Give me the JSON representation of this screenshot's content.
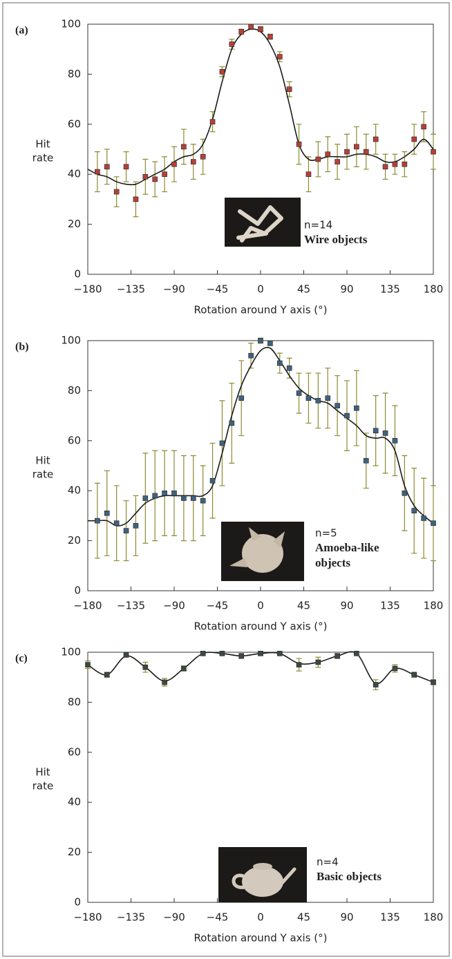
{
  "chart_data": [
    {
      "type": "scatter",
      "panel_label": "(a)",
      "y_label": [
        "Hit",
        "rate"
      ],
      "x_label": "Rotation around Y axis (°)",
      "xlim": [
        -180,
        180
      ],
      "ylim": [
        0,
        100
      ],
      "xticks": [
        {
          "value": -180,
          "label": "−180"
        },
        {
          "value": -135,
          "label": "−135"
        },
        {
          "value": -90,
          "label": "−90"
        },
        {
          "value": -45,
          "label": "−45"
        },
        0,
        45,
        90,
        135,
        180
      ],
      "yticks": [
        0,
        20,
        40,
        60,
        80,
        100
      ],
      "x": [
        -170,
        -160,
        -150,
        -140,
        -130,
        -120,
        -110,
        -100,
        -90,
        -80,
        -70,
        -60,
        -50,
        -40,
        -30,
        -20,
        -10,
        0,
        10,
        20,
        30,
        40,
        50,
        60,
        70,
        80,
        90,
        100,
        110,
        120,
        130,
        140,
        150,
        160,
        170,
        180
      ],
      "values": [
        41,
        43,
        33,
        43,
        30,
        39,
        38,
        40,
        44,
        51,
        45,
        47,
        61,
        81,
        92,
        97,
        99,
        98,
        95,
        87,
        74,
        52,
        40,
        46,
        48,
        45,
        49,
        51,
        49,
        54,
        43,
        44,
        44,
        54,
        59,
        49
      ],
      "errors": [
        8,
        7,
        6,
        6,
        7,
        7,
        7,
        7,
        7,
        7,
        7,
        7,
        4,
        2,
        2,
        1,
        1,
        1,
        1,
        2,
        3,
        8,
        7,
        7,
        7,
        7,
        7,
        8,
        7,
        6,
        5,
        4,
        5,
        6,
        6,
        7
      ],
      "color": "#b5403a",
      "error_color": "#8c8a2e",
      "fit": {
        "x": [
          -180,
          -170,
          -160,
          -150,
          -140,
          -130,
          -120,
          -110,
          -100,
          -90,
          -80,
          -70,
          -60,
          -50,
          -40,
          -30,
          -20,
          -10,
          0,
          10,
          20,
          30,
          40,
          50,
          60,
          70,
          80,
          90,
          100,
          110,
          120,
          130,
          140,
          150,
          160,
          170,
          180
        ],
        "values": [
          42,
          40,
          39,
          37,
          36,
          36,
          38,
          40,
          42,
          45,
          47,
          48,
          52,
          62,
          77,
          90,
          96,
          98,
          97,
          92,
          83,
          68,
          52,
          46,
          46,
          47,
          47,
          47,
          48,
          48,
          47,
          45,
          45,
          47,
          50,
          54,
          50
        ],
        "color": "#1a1a1a"
      },
      "annotations": [
        "n=14",
        "Wire objects"
      ]
    },
    {
      "type": "scatter",
      "panel_label": "(b)",
      "y_label": [
        "Hit",
        "rate"
      ],
      "x_label": "Rotation around Y axis (°)",
      "xlim": [
        -180,
        180
      ],
      "ylim": [
        0,
        100
      ],
      "xticks": [
        {
          "value": -180,
          "label": "−180"
        },
        {
          "value": -135,
          "label": "−135"
        },
        {
          "value": -90,
          "label": "−90"
        },
        {
          "value": -45,
          "label": "−45"
        },
        0,
        45,
        90,
        135,
        180
      ],
      "yticks": [
        0,
        20,
        40,
        60,
        80,
        100
      ],
      "x": [
        -170,
        -160,
        -150,
        -140,
        -130,
        -120,
        -110,
        -100,
        -90,
        -80,
        -70,
        -60,
        -50,
        -40,
        -30,
        -20,
        -10,
        0,
        10,
        20,
        30,
        40,
        50,
        60,
        70,
        80,
        90,
        100,
        110,
        120,
        130,
        140,
        150,
        160,
        170,
        180
      ],
      "values": [
        28,
        31,
        27,
        24,
        26,
        37,
        38,
        39,
        39,
        37,
        37,
        36,
        44,
        59,
        67,
        77,
        94,
        100,
        99,
        91,
        89,
        79,
        77,
        76,
        77,
        74,
        70,
        73,
        52,
        64,
        63,
        60,
        39,
        32,
        29,
        27
      ],
      "errors": [
        15,
        17,
        15,
        12,
        12,
        18,
        18,
        17,
        17,
        17,
        17,
        14,
        15,
        17,
        16,
        15,
        5,
        1,
        1,
        4,
        4,
        8,
        10,
        11,
        12,
        12,
        14,
        15,
        11,
        14,
        16,
        14,
        15,
        17,
        16,
        15
      ],
      "color": "#3f6280",
      "error_color": "#8c8a2e",
      "fit": {
        "x": [
          -180,
          -170,
          -160,
          -150,
          -140,
          -130,
          -120,
          -110,
          -100,
          -90,
          -80,
          -70,
          -60,
          -50,
          -40,
          -30,
          -20,
          -10,
          0,
          10,
          20,
          30,
          40,
          50,
          60,
          70,
          80,
          90,
          100,
          110,
          120,
          130,
          140,
          150,
          160,
          170,
          180
        ],
        "values": [
          28,
          28,
          28,
          26,
          27,
          31,
          35,
          37,
          38,
          38,
          38,
          38,
          38,
          42,
          55,
          70,
          82,
          90,
          96,
          97,
          92,
          86,
          81,
          78,
          76,
          75,
          72,
          69,
          66,
          62,
          61,
          61,
          56,
          42,
          34,
          30,
          27
        ],
        "color": "#1a1a1a"
      },
      "annotations": [
        "n=5",
        "Amoeba-like",
        "objects"
      ]
    },
    {
      "type": "scatter",
      "panel_label": "(c)",
      "y_label": [
        "Hit",
        "rate"
      ],
      "x_label": "Rotation around Y axis (°)",
      "xlim": [
        -180,
        180
      ],
      "ylim": [
        0,
        100
      ],
      "xticks": [
        {
          "value": -180,
          "label": "−180"
        },
        {
          "value": -135,
          "label": "−135"
        },
        {
          "value": -90,
          "label": "−90"
        },
        {
          "value": -45,
          "label": "−45"
        },
        0,
        45,
        90,
        135,
        180
      ],
      "yticks": [
        0,
        20,
        40,
        60,
        80,
        100
      ],
      "x": [
        -180,
        -160,
        -140,
        -120,
        -100,
        -80,
        -60,
        -40,
        -20,
        0,
        20,
        40,
        60,
        80,
        100,
        120,
        140,
        160,
        180
      ],
      "values": [
        95,
        91,
        99,
        94,
        88,
        93.5,
        99.5,
        99.5,
        98.5,
        99.5,
        99.5,
        95,
        96,
        98.5,
        99.5,
        87,
        93.5,
        91,
        88
      ],
      "errors": [
        1.5,
        1,
        1,
        2,
        1.5,
        1,
        0.5,
        0.5,
        1,
        0.5,
        0.5,
        2.5,
        2,
        1,
        0.5,
        2,
        1.5,
        1,
        1
      ],
      "color": "#3b4a45",
      "error_color": "#8c8a2e",
      "fit": {
        "x": [
          -180,
          -160,
          -140,
          -120,
          -100,
          -80,
          -60,
          -40,
          -20,
          0,
          20,
          40,
          60,
          80,
          100,
          120,
          140,
          160,
          180
        ],
        "values": [
          95,
          91,
          98.5,
          94,
          88.5,
          93.5,
          99.5,
          99.5,
          98.5,
          99.5,
          99.5,
          95.5,
          96,
          98.5,
          99.5,
          87.5,
          93.5,
          91,
          88
        ],
        "color": "#1a1a1a"
      },
      "annotations": [
        "n=4",
        "Basic objects"
      ]
    }
  ]
}
